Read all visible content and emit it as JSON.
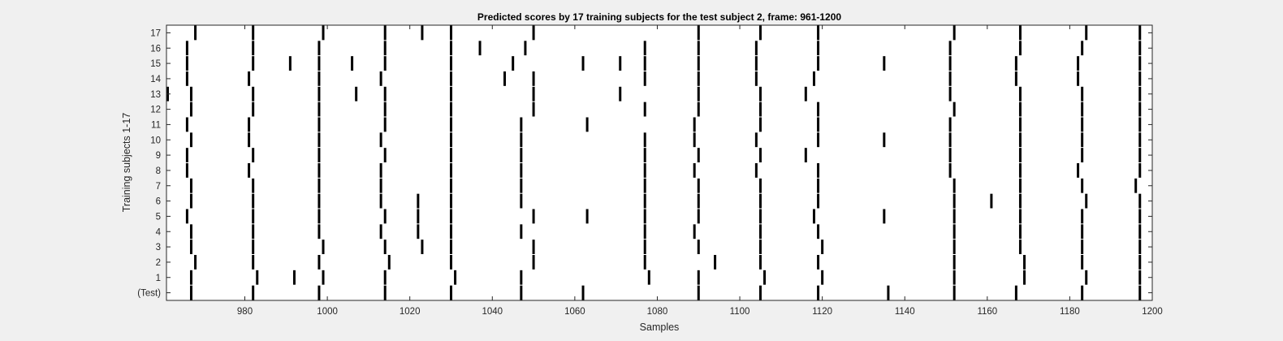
{
  "chart_data": {
    "type": "raster",
    "title": "Predicted scores by 17 training subjects for the test subject 2, frame: 961-1200",
    "xlabel": "Samples",
    "ylabel": "Training subjects 1-17",
    "xlim": [
      961,
      1200
    ],
    "xticks": [
      980,
      1000,
      1020,
      1040,
      1060,
      1080,
      1100,
      1120,
      1140,
      1160,
      1180,
      1200
    ],
    "yticklabels": [
      "(Test)",
      "1",
      "2",
      "3",
      "4",
      "5",
      "6",
      "7",
      "8",
      "9",
      "10",
      "11",
      "12",
      "13",
      "14",
      "15",
      "16",
      "17"
    ],
    "grid": false,
    "mark_color": "#000000",
    "rows": [
      {
        "label": "(Test)",
        "events": [
          967,
          982,
          998,
          1014,
          1030,
          1047,
          1062,
          1090,
          1105,
          1119,
          1136,
          1152,
          1167,
          1183,
          1197
        ]
      },
      {
        "label": "1",
        "events": [
          967,
          983,
          992,
          999,
          1014,
          1031,
          1047,
          1078,
          1090,
          1106,
          1120,
          1152,
          1169,
          1184,
          1197
        ]
      },
      {
        "label": "2",
        "events": [
          968,
          982,
          998,
          1015,
          1030,
          1050,
          1077,
          1094,
          1105,
          1119,
          1152,
          1169,
          1183,
          1197
        ]
      },
      {
        "label": "3",
        "events": [
          967,
          982,
          999,
          1014,
          1023,
          1030,
          1050,
          1077,
          1090,
          1105,
          1120,
          1152,
          1168,
          1183,
          1197
        ]
      },
      {
        "label": "4",
        "events": [
          967,
          982,
          998,
          1013,
          1022,
          1030,
          1047,
          1077,
          1089,
          1105,
          1119,
          1152,
          1168,
          1183,
          1197
        ]
      },
      {
        "label": "5",
        "events": [
          966,
          982,
          998,
          1014,
          1022,
          1030,
          1050,
          1063,
          1077,
          1090,
          1105,
          1118,
          1135,
          1152,
          1168,
          1183,
          1197
        ]
      },
      {
        "label": "6",
        "events": [
          967,
          982,
          998,
          1013,
          1022,
          1030,
          1047,
          1077,
          1090,
          1105,
          1119,
          1152,
          1161,
          1168,
          1184,
          1197
        ]
      },
      {
        "label": "7",
        "events": [
          967,
          982,
          998,
          1013,
          1030,
          1047,
          1077,
          1090,
          1105,
          1119,
          1152,
          1168,
          1183,
          1196
        ]
      },
      {
        "label": "8",
        "events": [
          966,
          981,
          998,
          1013,
          1030,
          1047,
          1077,
          1089,
          1104,
          1119,
          1151,
          1168,
          1182,
          1197
        ]
      },
      {
        "label": "9",
        "events": [
          966,
          982,
          998,
          1014,
          1030,
          1047,
          1077,
          1090,
          1105,
          1116,
          1151,
          1168,
          1183,
          1197
        ]
      },
      {
        "label": "10",
        "events": [
          967,
          981,
          998,
          1013,
          1030,
          1047,
          1077,
          1089,
          1104,
          1119,
          1135,
          1151,
          1168,
          1183,
          1197
        ]
      },
      {
        "label": "11",
        "events": [
          966,
          981,
          998,
          1014,
          1030,
          1047,
          1063,
          1089,
          1105,
          1119,
          1151,
          1168,
          1183,
          1197
        ]
      },
      {
        "label": "12",
        "events": [
          967,
          982,
          998,
          1014,
          1030,
          1050,
          1077,
          1090,
          1105,
          1119,
          1152,
          1168,
          1183,
          1197
        ]
      },
      {
        "label": "13",
        "events": [
          961,
          967,
          982,
          998,
          1007,
          1014,
          1030,
          1050,
          1071,
          1090,
          1105,
          1116,
          1151,
          1168,
          1183,
          1197
        ]
      },
      {
        "label": "14",
        "events": [
          966,
          981,
          998,
          1013,
          1030,
          1043,
          1050,
          1077,
          1090,
          1104,
          1118,
          1151,
          1167,
          1182,
          1197
        ]
      },
      {
        "label": "15",
        "events": [
          966,
          982,
          991,
          998,
          1006,
          1014,
          1030,
          1045,
          1062,
          1071,
          1077,
          1090,
          1104,
          1119,
          1135,
          1151,
          1167,
          1182,
          1197
        ]
      },
      {
        "label": "16",
        "events": [
          966,
          982,
          998,
          1014,
          1030,
          1037,
          1048,
          1077,
          1090,
          1104,
          1119,
          1151,
          1168,
          1183,
          1197
        ]
      },
      {
        "label": "17",
        "events": [
          968,
          982,
          999,
          1014,
          1023,
          1030,
          1050,
          1090,
          1105,
          1119,
          1152,
          1168,
          1184,
          1197
        ]
      }
    ]
  }
}
